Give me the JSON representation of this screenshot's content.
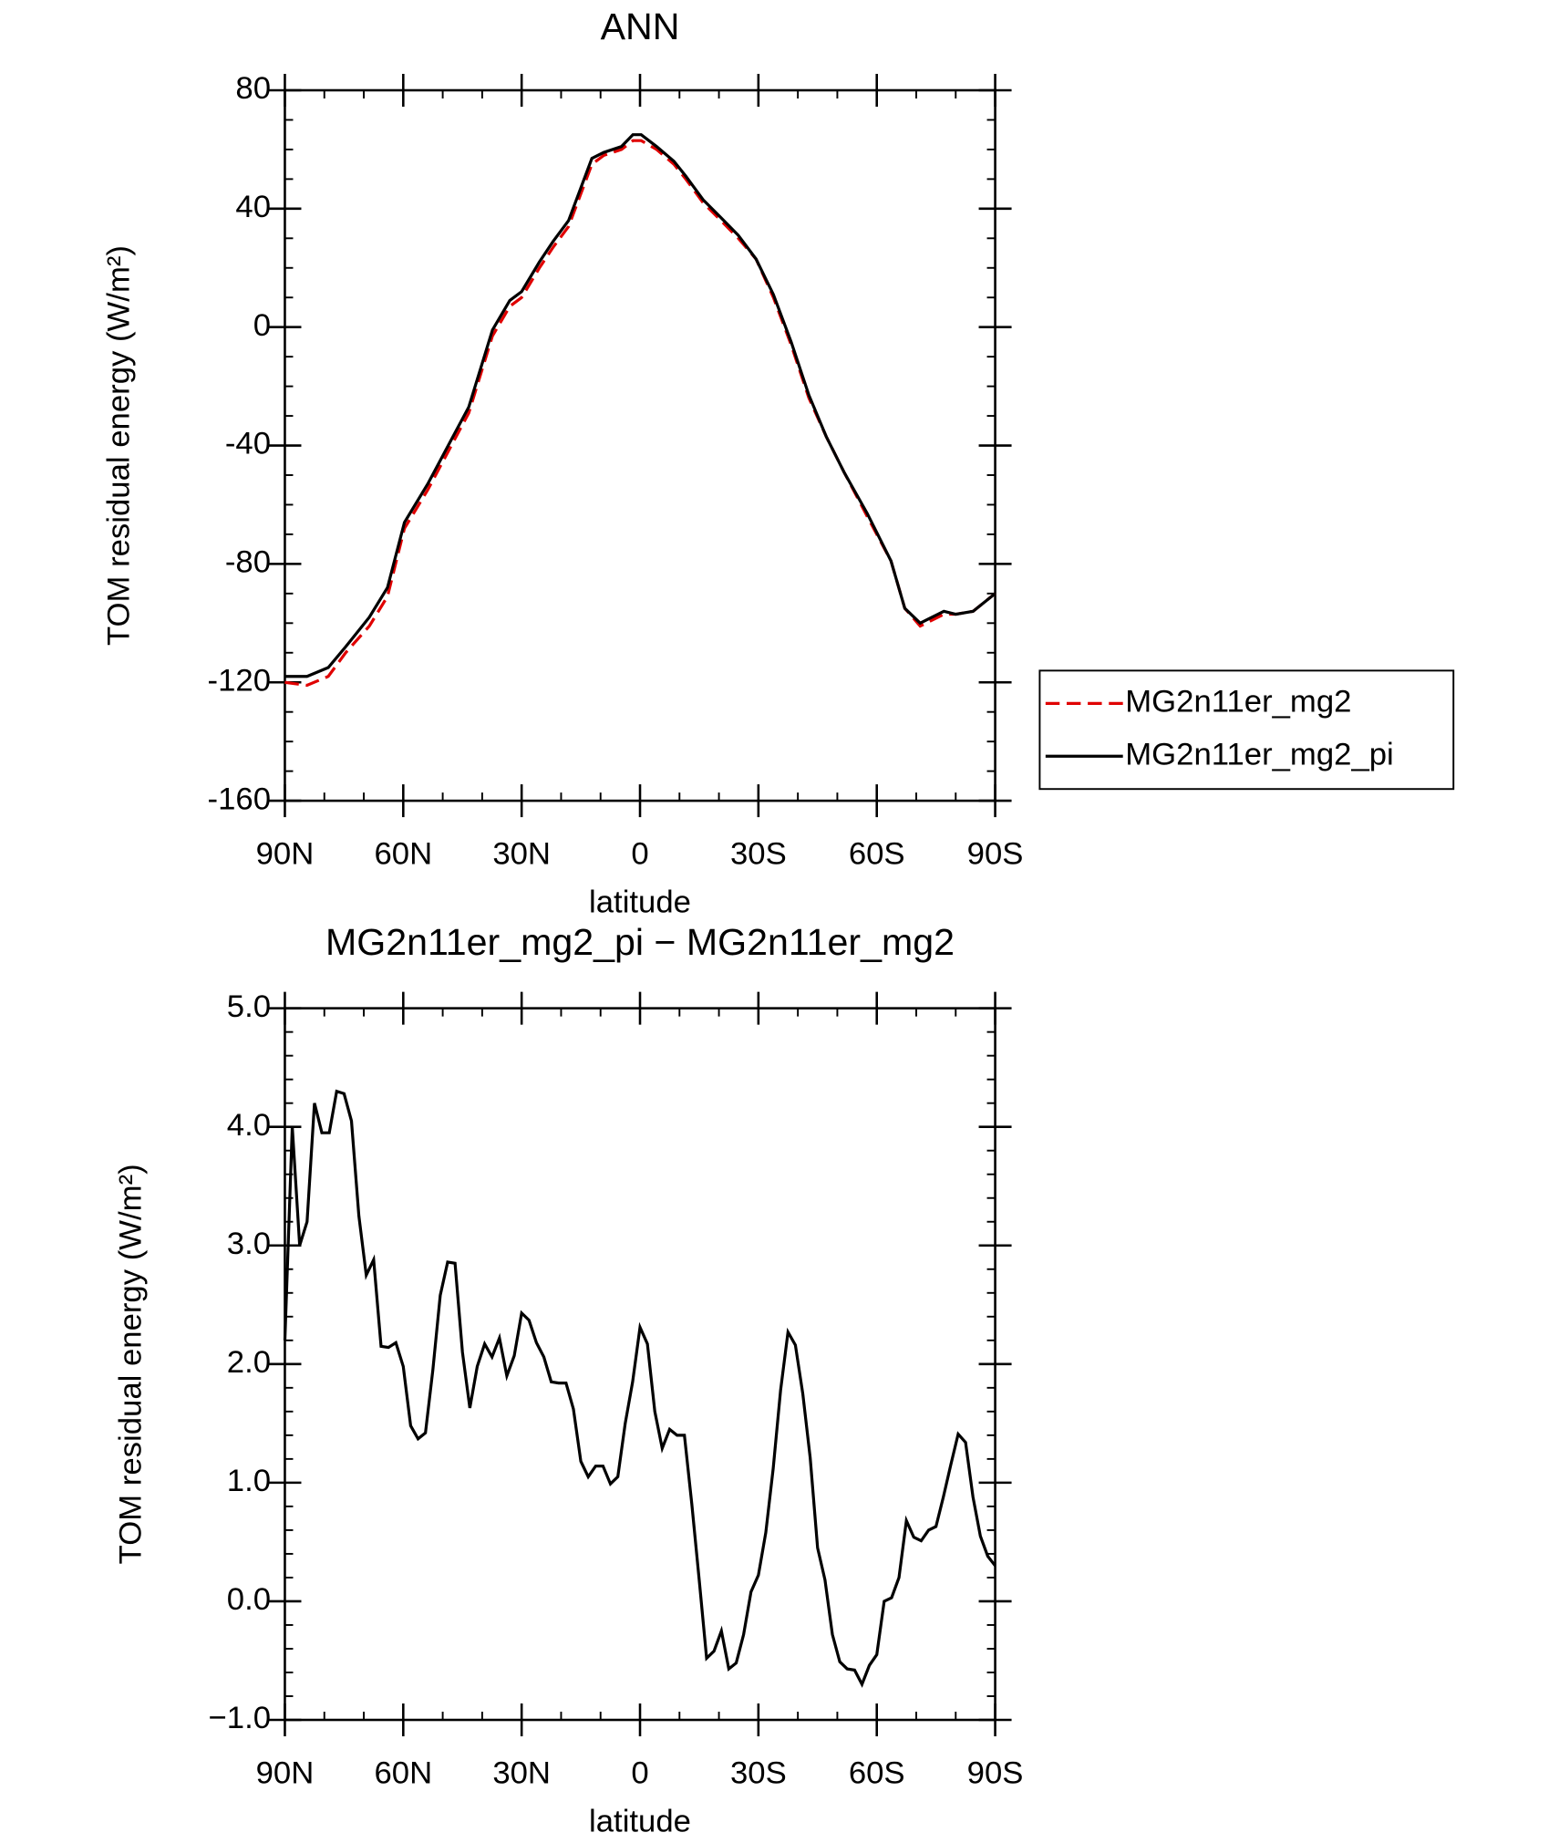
{
  "chart_data": [
    {
      "type": "line",
      "title": "ANN",
      "xlabel": "latitude",
      "ylabel": "TOM residual energy (W/m²)",
      "x": [
        90,
        84.4,
        79,
        74.6,
        68.6,
        64,
        59.7,
        53.8,
        47.8,
        43.4,
        37.4,
        33,
        30,
        25.5,
        22,
        18.1,
        12.2,
        9.2,
        4.7,
        1.8,
        -0.3,
        -4.2,
        -8.6,
        -11.6,
        -16,
        -20.5,
        -24.9,
        -29.4,
        -33.8,
        -38.3,
        -42.8,
        -47.2,
        -51.7,
        -57.6,
        -63.6,
        -67.1,
        -71,
        -77,
        -80,
        -84.4,
        -90
      ],
      "series": [
        {
          "name": "MG2n11er_mg2",
          "color": "#e00000",
          "dash": true,
          "values": [
            -120,
            -121,
            -118,
            -110,
            -101,
            -91,
            -68,
            -55,
            -40,
            -29,
            -3,
            7,
            10,
            20,
            27,
            34,
            55,
            58,
            60,
            63,
            63,
            60,
            55,
            50,
            42,
            36,
            30,
            23,
            10,
            -6,
            -24,
            -37,
            -49,
            -64,
            -79,
            -95,
            -101,
            -97,
            -97,
            -96,
            -90
          ]
        },
        {
          "name": "MG2n11er_mg2_pi",
          "color": "#000000",
          "dash": false,
          "values": [
            -118,
            -118,
            -115,
            -108,
            -98,
            -88,
            -66,
            -53,
            -38,
            -27,
            -1,
            9,
            12,
            22,
            29,
            36,
            57,
            59,
            61,
            65,
            65,
            61,
            56,
            51,
            43,
            37,
            31,
            23,
            11,
            -5,
            -23,
            -37,
            -49,
            -63,
            -79,
            -95,
            -100,
            -96,
            -97,
            -96,
            -90
          ]
        }
      ],
      "xlim": [
        90,
        -90
      ],
      "xticks": [
        {
          "value": 90,
          "label": "90N"
        },
        {
          "value": 60,
          "label": "60N"
        },
        {
          "value": 30,
          "label": "30N"
        },
        0,
        {
          "value": -30,
          "label": "30S"
        },
        {
          "value": -60,
          "label": "60S"
        },
        {
          "value": -90,
          "label": "90S"
        }
      ],
      "ylim": [
        -160,
        80
      ],
      "yticks": [
        -160,
        -120,
        -80,
        -40,
        0,
        40,
        80
      ],
      "legend": "right"
    },
    {
      "type": "line",
      "title": "MG2n11er_mg2_pi − MG2n11er_mg2",
      "xlabel": "latitude",
      "ylabel": "TOM residual energy (W/m²)",
      "x": [
        90,
        88.125,
        86.25,
        84.375,
        82.5,
        80.625,
        78.75,
        76.875,
        75,
        73.125,
        71.25,
        69.375,
        67.5,
        65.625,
        63.75,
        61.875,
        60,
        58.125,
        56.25,
        54.375,
        52.5,
        50.625,
        48.75,
        46.875,
        45,
        43.125,
        41.25,
        39.375,
        37.5,
        35.625,
        33.75,
        31.875,
        30,
        28.125,
        26.25,
        24.375,
        22.5,
        20.625,
        18.75,
        16.875,
        15,
        13.125,
        11.25,
        9.375,
        7.5,
        5.625,
        3.75,
        1.875,
        0,
        -1.875,
        -3.75,
        -5.625,
        -7.5,
        -9.375,
        -11.25,
        -13.125,
        -15,
        -16.875,
        -18.75,
        -20.625,
        -22.5,
        -24.375,
        -26.25,
        -28.125,
        -30,
        -31.875,
        -33.75,
        -35.625,
        -37.5,
        -39.375,
        -41.25,
        -43.125,
        -45,
        -46.875,
        -48.75,
        -50.625,
        -52.5,
        -54.375,
        -56.25,
        -58.125,
        -60,
        -61.875,
        -63.75,
        -65.625,
        -67.5,
        -69.375,
        -71.25,
        -73.125,
        -75,
        -76.875,
        -78.75,
        -80.625,
        -82.5,
        -84.375,
        -86.25,
        -88.125,
        -90
      ],
      "series": [
        {
          "color": "#000000",
          "dash": false,
          "values": [
            2.2,
            4.0,
            3.0,
            3.2,
            4.2,
            3.95,
            3.95,
            4.3,
            4.28,
            4.05,
            3.25,
            2.75,
            2.88,
            2.15,
            2.14,
            2.18,
            1.98,
            1.48,
            1.37,
            1.42,
            1.95,
            2.58,
            2.86,
            2.85,
            2.1,
            1.63,
            1.98,
            2.17,
            2.06,
            2.22,
            1.9,
            2.07,
            2.43,
            2.37,
            2.18,
            2.06,
            1.85,
            1.84,
            1.84,
            1.62,
            1.18,
            1.05,
            1.14,
            1.14,
            0.99,
            1.05,
            1.5,
            1.85,
            2.31,
            2.17,
            1.6,
            1.29,
            1.45,
            1.4,
            1.4,
            0.82,
            0.18,
            -0.48,
            -0.42,
            -0.25,
            -0.57,
            -0.52,
            -0.28,
            0.08,
            0.22,
            0.58,
            1.12,
            1.78,
            2.27,
            2.16,
            1.75,
            1.21,
            0.45,
            0.18,
            -0.28,
            -0.51,
            -0.57,
            -0.58,
            -0.7,
            -0.54,
            -0.45,
            0.0,
            0.03,
            0.2,
            0.68,
            0.54,
            0.51,
            0.6,
            0.63,
            0.88,
            1.15,
            1.41,
            1.34,
            0.88,
            0.55,
            0.38,
            0.3
          ]
        }
      ],
      "xlim": [
        90,
        -90
      ],
      "xticks": [
        {
          "value": 90,
          "label": "90N"
        },
        {
          "value": 60,
          "label": "60N"
        },
        {
          "value": 30,
          "label": "30N"
        },
        0,
        {
          "value": -30,
          "label": "30S"
        },
        {
          "value": -60,
          "label": "60S"
        },
        {
          "value": -90,
          "label": "90S"
        }
      ],
      "ylim": [
        -1,
        5
      ],
      "yticks": [
        {
          "value": -1,
          "label": "−1.0"
        },
        {
          "value": 0,
          "label": "0.0"
        },
        {
          "value": 1,
          "label": "1.0"
        },
        {
          "value": 2,
          "label": "2.0"
        },
        {
          "value": 3,
          "label": "3.0"
        },
        {
          "value": 4,
          "label": "4.0"
        },
        {
          "value": 5,
          "label": "5.0"
        }
      ]
    }
  ]
}
